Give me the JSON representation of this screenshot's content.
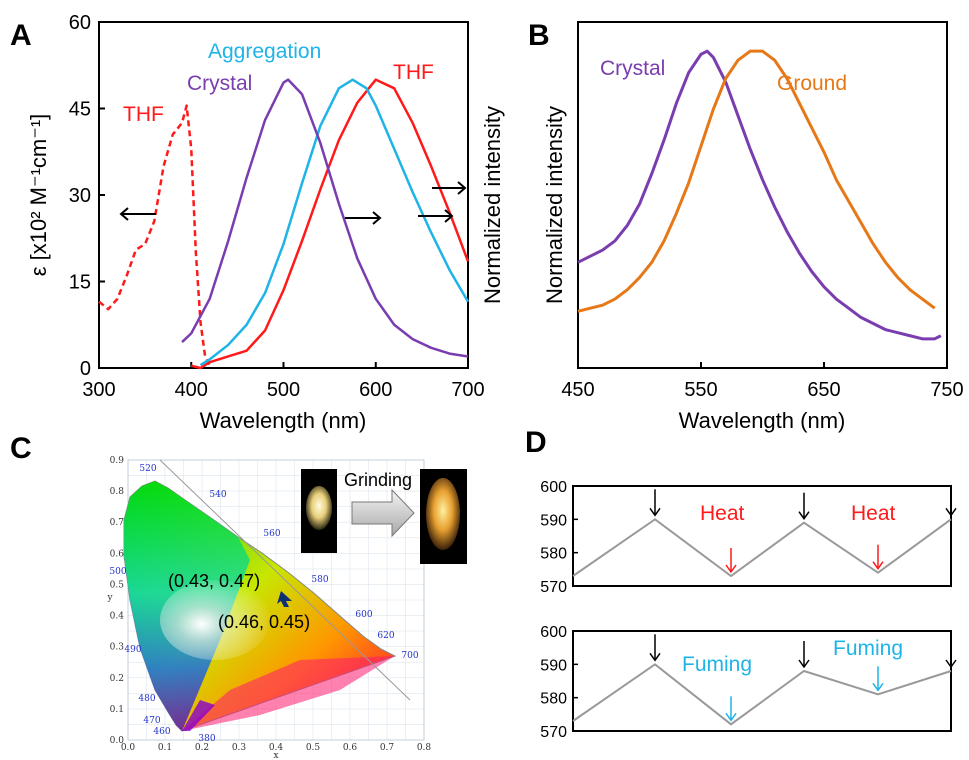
{
  "colors": {
    "thf": "#ff1a1a",
    "aggregation": "#1eb4e6",
    "crystal": "#7a3db0",
    "ground": "#e67817",
    "trace": "#999999",
    "heat": "#ff1a1a",
    "fuming": "#1eb4e6"
  },
  "chart_data": [
    {
      "panel": "A",
      "type": "line",
      "xlabel": "Wavelength (nm)",
      "ylabel": "ε [x10² M⁻¹cm⁻¹]",
      "ylabel_right": "Normalized intensity",
      "xlim": [
        300,
        700
      ],
      "ylim": [
        0,
        60
      ],
      "xticks": [
        "300",
        "400",
        "500",
        "600",
        "700"
      ],
      "yticks": [
        "0",
        "15",
        "30",
        "45",
        "60"
      ],
      "series": [
        {
          "name": "THF",
          "style": "dashed",
          "axis": "left",
          "x": [
            300,
            310,
            320,
            330,
            340,
            350,
            360,
            370,
            380,
            390,
            395,
            400,
            405,
            410,
            415,
            420
          ],
          "y": [
            11.5,
            10.2,
            12.0,
            16.0,
            20.5,
            21.5,
            25.5,
            35.0,
            40.5,
            42.5,
            45.5,
            38.0,
            20.0,
            8.0,
            2.0,
            0.5
          ]
        },
        {
          "name": "THF",
          "style": "solid",
          "axis": "right",
          "x": [
            400,
            410,
            420,
            440,
            460,
            480,
            500,
            520,
            540,
            560,
            580,
            600,
            620,
            640,
            660,
            680,
            700
          ],
          "y": [
            0.4,
            0.0,
            1.0,
            2.0,
            3.0,
            6.5,
            13.5,
            22.0,
            31.0,
            39.5,
            46.0,
            50.0,
            48.5,
            42.5,
            35.0,
            27.0,
            18.5
          ]
        },
        {
          "name": "Aggregation",
          "style": "solid",
          "axis": "right",
          "x": [
            410,
            420,
            440,
            460,
            480,
            500,
            520,
            540,
            560,
            575,
            590,
            600,
            620,
            640,
            660,
            680,
            700
          ],
          "y": [
            0.5,
            1.5,
            4.0,
            7.5,
            13.0,
            21.5,
            32.0,
            42.0,
            48.5,
            50.0,
            48.5,
            45.5,
            38.0,
            30.5,
            23.5,
            17.0,
            11.5
          ]
        },
        {
          "name": "Crystal",
          "style": "solid",
          "axis": "right",
          "x": [
            390,
            400,
            420,
            440,
            460,
            480,
            500,
            505,
            520,
            540,
            560,
            580,
            600,
            620,
            640,
            660,
            680,
            700
          ],
          "y": [
            4.5,
            6.0,
            12.0,
            22.0,
            33.0,
            43.0,
            49.5,
            50.0,
            47.5,
            39.0,
            28.5,
            19.0,
            12.0,
            7.5,
            5.0,
            3.5,
            2.5,
            2.0
          ]
        }
      ],
      "series_labels": [
        "THF",
        "Aggregation",
        "Crystal",
        "THF"
      ]
    },
    {
      "panel": "B",
      "type": "line",
      "xlabel": "Wavelength (nm)",
      "ylabel": "Normalized intensity",
      "xlim": [
        450,
        750
      ],
      "ylim": [
        0,
        1.0
      ],
      "xticks": [
        "450",
        "550",
        "650",
        "750"
      ],
      "series": [
        {
          "name": "Crystal",
          "x": [
            450,
            460,
            470,
            480,
            490,
            500,
            510,
            520,
            530,
            540,
            550,
            555,
            560,
            570,
            580,
            590,
            600,
            610,
            620,
            630,
            640,
            650,
            660,
            670,
            680,
            690,
            700,
            710,
            720,
            730,
            740,
            745
          ],
          "y": [
            0.28,
            0.3,
            0.32,
            0.35,
            0.4,
            0.47,
            0.57,
            0.68,
            0.8,
            0.9,
            0.96,
            0.97,
            0.95,
            0.87,
            0.76,
            0.65,
            0.55,
            0.46,
            0.38,
            0.31,
            0.25,
            0.2,
            0.16,
            0.13,
            0.1,
            0.08,
            0.06,
            0.05,
            0.04,
            0.03,
            0.03,
            0.04
          ]
        },
        {
          "name": "Ground",
          "x": [
            450,
            460,
            470,
            480,
            490,
            500,
            510,
            520,
            530,
            540,
            550,
            560,
            570,
            580,
            590,
            600,
            610,
            620,
            630,
            640,
            650,
            660,
            670,
            680,
            690,
            700,
            710,
            720,
            730,
            740
          ],
          "y": [
            0.12,
            0.13,
            0.14,
            0.16,
            0.19,
            0.23,
            0.28,
            0.35,
            0.44,
            0.54,
            0.66,
            0.78,
            0.88,
            0.94,
            0.97,
            0.97,
            0.94,
            0.88,
            0.8,
            0.72,
            0.64,
            0.55,
            0.48,
            0.41,
            0.34,
            0.28,
            0.23,
            0.19,
            0.16,
            0.13
          ]
        }
      ]
    },
    {
      "panel": "C",
      "type": "scatter",
      "xlabel": "x",
      "ylabel": "y",
      "xlim": [
        0.0,
        0.8
      ],
      "ylim": [
        0.0,
        0.9
      ],
      "xticks": [
        "0.0",
        "0.1",
        "0.2",
        "0.3",
        "0.4",
        "0.5",
        "0.6",
        "0.7",
        "0.8"
      ],
      "yticks": [
        "0.0",
        "0.1",
        "0.2",
        "0.3",
        "0.4",
        "0.5",
        "0.6",
        "0.7",
        "0.8",
        "0.9"
      ],
      "wavelength_marks": [
        "380",
        "460",
        "470",
        "480",
        "490",
        "500",
        "520",
        "540",
        "560",
        "580",
        "600",
        "620",
        "700"
      ],
      "points": [
        {
          "label": "(0.43, 0.47)",
          "x": 0.43,
          "y": 0.47
        },
        {
          "label": "(0.46, 0.45)",
          "x": 0.46,
          "y": 0.45
        }
      ],
      "annotation": "Grinding"
    },
    {
      "panel": "D",
      "type": "line",
      "ylim": [
        570,
        600
      ],
      "yticks": [
        "570",
        "580",
        "590",
        "600"
      ],
      "subplots": [
        {
          "treatment": "Heat",
          "x": [
            0,
            1,
            2,
            3,
            4,
            5
          ],
          "y": [
            573,
            590,
            573,
            589,
            574,
            590
          ]
        },
        {
          "treatment": "Fuming",
          "x": [
            0,
            1,
            2,
            3,
            4,
            5
          ],
          "y": [
            573,
            590,
            572,
            588,
            581,
            588
          ]
        }
      ]
    }
  ],
  "panels": {
    "A": "A",
    "B": "B",
    "C": "C",
    "D": "D"
  }
}
